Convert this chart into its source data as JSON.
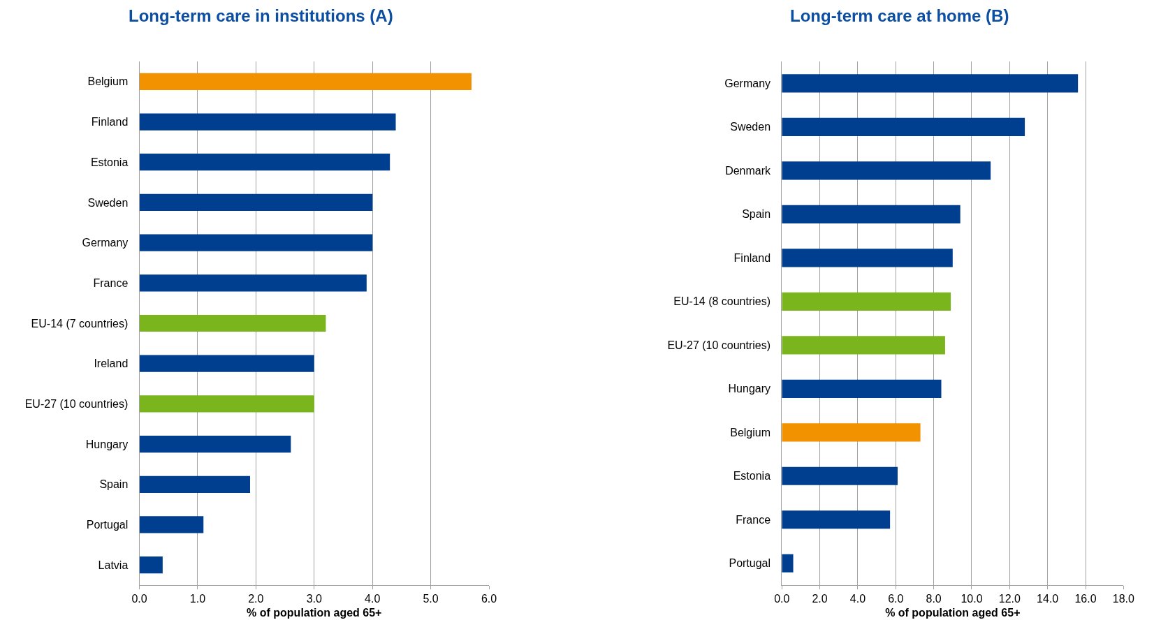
{
  "chart_data": [
    {
      "type": "bar",
      "orientation": "horizontal",
      "title": "Long-term care in institutions (A)",
      "xlabel": "% of population aged 65+",
      "categories": [
        "Belgium",
        "Finland",
        "Estonia",
        "Sweden",
        "Germany",
        "France",
        "EU-14 (7 countries)",
        "Ireland",
        "EU-27 (10 countries)",
        "Hungary",
        "Spain",
        "Portugal",
        "Latvia"
      ],
      "values": [
        5.7,
        4.4,
        4.3,
        4.0,
        4.0,
        3.9,
        3.2,
        3.0,
        3.0,
        2.6,
        1.9,
        1.1,
        0.4
      ],
      "colors": [
        "#f39200",
        "#003f8f",
        "#003f8f",
        "#003f8f",
        "#003f8f",
        "#003f8f",
        "#7ab51d",
        "#003f8f",
        "#7ab51d",
        "#003f8f",
        "#003f8f",
        "#003f8f",
        "#003f8f"
      ],
      "xlim": [
        0,
        6
      ],
      "xticks": [
        {
          "value": 0,
          "label": "0.0"
        },
        {
          "value": 1,
          "label": "1.0"
        },
        {
          "value": 2,
          "label": "2.0"
        },
        {
          "value": 3,
          "label": "3.0"
        },
        {
          "value": 4,
          "label": "4.0"
        },
        {
          "value": 5,
          "label": "5.0"
        },
        {
          "value": 6,
          "label": "6.0"
        }
      ],
      "grid": "x"
    },
    {
      "type": "bar",
      "orientation": "horizontal",
      "title": "Long-term care at home (B)",
      "xlabel": "% of population aged 65+",
      "categories": [
        "Germany",
        "Sweden",
        "Denmark",
        "Spain",
        "Finland",
        "EU-14 (8 countries)",
        "EU-27 (10 countries)",
        "Hungary",
        "Belgium",
        "Estonia",
        "France",
        "Portugal"
      ],
      "values": [
        15.6,
        12.8,
        11.0,
        9.4,
        9.0,
        8.9,
        8.6,
        8.4,
        7.3,
        6.1,
        5.7,
        0.6
      ],
      "colors": [
        "#003f8f",
        "#003f8f",
        "#003f8f",
        "#003f8f",
        "#003f8f",
        "#7ab51d",
        "#7ab51d",
        "#003f8f",
        "#f39200",
        "#003f8f",
        "#003f8f",
        "#003f8f"
      ],
      "xlim": [
        0,
        18
      ],
      "xticks": [
        {
          "value": 0,
          "label": "0.0"
        },
        {
          "value": 2,
          "label": "2.0"
        },
        {
          "value": 4,
          "label": "4.0"
        },
        {
          "value": 6,
          "label": "6.0"
        },
        {
          "value": 8,
          "label": "8.0"
        },
        {
          "value": 10,
          "label": "10.0"
        },
        {
          "value": 12,
          "label": "12.0"
        },
        {
          "value": 14,
          "label": "14.0"
        },
        {
          "value": 16,
          "label": "16.0"
        },
        {
          "value": 18,
          "label": "18.0"
        }
      ],
      "grid": "x"
    }
  ]
}
